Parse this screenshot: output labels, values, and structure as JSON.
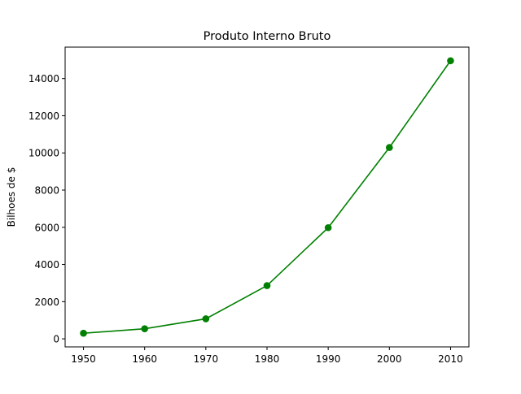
{
  "chart_data": {
    "type": "line",
    "title": "Produto Interno Bruto",
    "xlabel": "",
    "ylabel": "Bilhoes de $",
    "x": [
      1950,
      1960,
      1970,
      1980,
      1990,
      2000,
      2010
    ],
    "series": [
      {
        "values": [
          300.2,
          543.3,
          1075.9,
          2862.5,
          5979.6,
          10289.7,
          14958.3
        ],
        "color": "#008000",
        "marker": "circle"
      }
    ],
    "xticks": [
      "1950",
      "1960",
      "1970",
      "1980",
      "1990",
      "2000",
      "2010"
    ],
    "yticks": [
      "0",
      "2000",
      "4000",
      "6000",
      "8000",
      "10000",
      "12000",
      "14000"
    ],
    "xlim": [
      1947,
      2013
    ],
    "ylim": [
      -433,
      15691
    ],
    "grid": false,
    "legend": "none"
  }
}
